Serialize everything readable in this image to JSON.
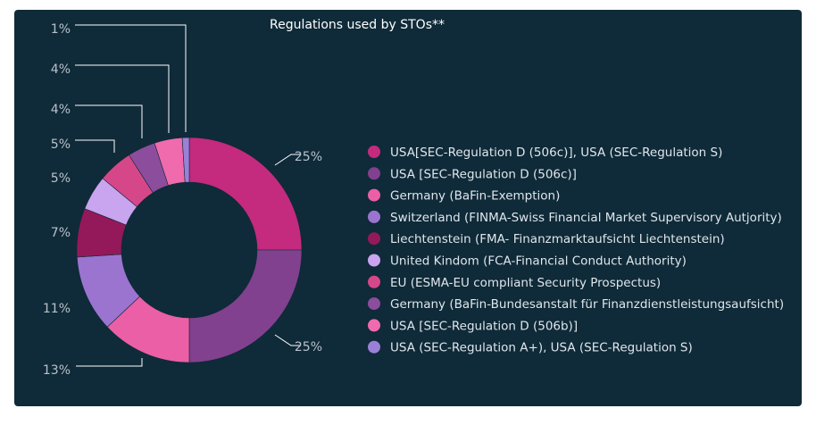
{
  "chart_data": {
    "type": "pie",
    "variant": "donut",
    "title": "Regulations used by STOs**",
    "legend_position": "right",
    "slices": [
      {
        "label": "USA[SEC-Regulation D (506c)], USA (SEC-Regulation S)",
        "value": 25,
        "display": "25%",
        "color": "#c42a7d"
      },
      {
        "label": "USA [SEC-Regulation D (506c)]",
        "value": 25,
        "display": "25%",
        "color": "#81418e"
      },
      {
        "label": "Germany (BaFin-Exemption)",
        "value": 13,
        "display": "13%",
        "color": "#ea5fa6"
      },
      {
        "label": "Switzerland (FINMA-Swiss Financial Market Supervisory Autjority)",
        "value": 11,
        "display": "11%",
        "color": "#9b74d0"
      },
      {
        "label": "Liechtenstein (FMA- Finanzmarktaufsicht Liechtenstein)",
        "value": 7,
        "display": "7%",
        "color": "#94195a"
      },
      {
        "label": "United Kindom (FCA-Financial Conduct Authority)",
        "value": 5,
        "display": "5%",
        "color": "#c9a4ef"
      },
      {
        "label": "EU (ESMA-EU compliant Security Prospectus)",
        "value": 5,
        "display": "5%",
        "color": "#d6478a"
      },
      {
        "label": "Germany (BaFin-Bundesanstalt für Finanzdienstleistungsaufsicht)",
        "value": 4,
        "display": "4%",
        "color": "#8c4d9d"
      },
      {
        "label": "USA [SEC-Regulation D (506b)]",
        "value": 4,
        "display": "4%",
        "color": "#f06aae"
      },
      {
        "label": "USA (SEC-Regulation A+), USA (SEC-Regulation S)",
        "value": 1,
        "display": "1%",
        "color": "#9b80d8"
      }
    ]
  }
}
